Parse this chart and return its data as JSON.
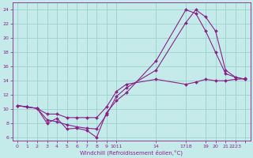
{
  "xlabel": "Windchill (Refroidissement éolien,°C)",
  "background_color": "#c5eaea",
  "grid_color": "#9dd0d0",
  "line_color": "#882288",
  "xlim": [
    -0.5,
    23.5
  ],
  "ylim": [
    5.5,
    25.0
  ],
  "ytick_positions": [
    6,
    8,
    10,
    12,
    14,
    16,
    18,
    20,
    22,
    24
  ],
  "xtick_positions": [
    0,
    1,
    2,
    3,
    4,
    5,
    6,
    7,
    8,
    9,
    10,
    14,
    17,
    19,
    20,
    21,
    22,
    23
  ],
  "xtick_labels": [
    "0",
    "1",
    "2",
    "3",
    "4",
    "5",
    "6",
    "7",
    "8",
    "9",
    "1011",
    "14",
    "1718",
    "19",
    "20",
    "21",
    "2223",
    ""
  ],
  "line1_x": [
    0,
    1,
    2,
    3,
    4,
    5,
    6,
    7,
    8,
    9,
    10,
    11,
    14,
    17,
    18,
    19,
    20,
    21,
    22,
    23
  ],
  "line1_y": [
    10.5,
    10.3,
    10.1,
    8.0,
    8.7,
    7.2,
    7.3,
    7.0,
    6.0,
    9.5,
    11.2,
    12.3,
    16.8,
    24.0,
    23.5,
    21.0,
    18.0,
    15.0,
    14.5,
    14.2
  ],
  "line2_x": [
    0,
    1,
    2,
    3,
    4,
    5,
    6,
    7,
    8,
    9,
    10,
    11,
    14,
    17,
    18,
    19,
    20,
    21,
    22,
    23
  ],
  "line2_y": [
    10.5,
    10.3,
    10.1,
    8.5,
    8.2,
    7.8,
    7.5,
    7.3,
    7.2,
    9.2,
    11.8,
    13.0,
    15.5,
    22.2,
    24.0,
    23.0,
    21.0,
    15.5,
    14.5,
    14.2
  ],
  "line3_x": [
    0,
    1,
    2,
    3,
    4,
    5,
    6,
    7,
    8,
    9,
    10,
    11,
    14,
    17,
    18,
    19,
    20,
    21,
    22,
    23
  ],
  "line3_y": [
    10.5,
    10.3,
    10.1,
    9.3,
    9.3,
    8.8,
    8.8,
    8.8,
    8.8,
    10.3,
    12.5,
    13.5,
    14.2,
    13.5,
    13.8,
    14.2,
    14.0,
    14.0,
    14.2,
    14.3
  ]
}
